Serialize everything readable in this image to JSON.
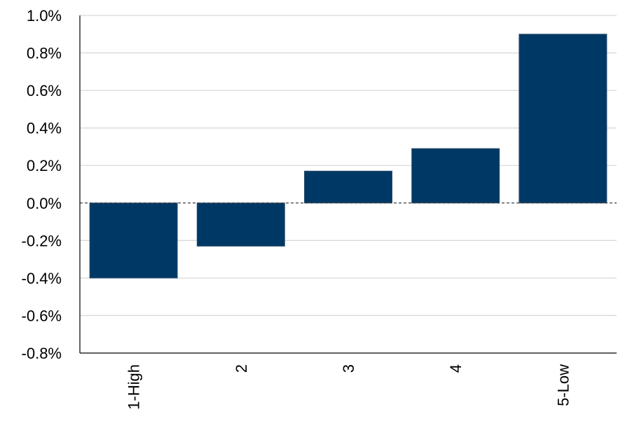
{
  "chart_data": {
    "type": "bar",
    "title": "",
    "xlabel": "",
    "ylabel": "",
    "categories": [
      "1-High",
      "2",
      "3",
      "4",
      "5-Low"
    ],
    "values": [
      -0.4,
      -0.23,
      0.17,
      0.29,
      0.9
    ],
    "ylim": [
      -0.8,
      1.0
    ],
    "yticks": [
      1.0,
      0.8,
      0.6,
      0.4,
      0.2,
      0.0,
      -0.2,
      -0.4,
      -0.6,
      -0.8
    ],
    "ytick_labels": [
      "1.0%",
      "0.8%",
      "0.6%",
      "0.4%",
      "0.2%",
      "0.0%",
      "-0.2%",
      "-0.4%",
      "-0.6%",
      "-0.8%"
    ],
    "grid": true,
    "legend": "none",
    "bar_color": "#003865",
    "zero_line": "dashed"
  }
}
